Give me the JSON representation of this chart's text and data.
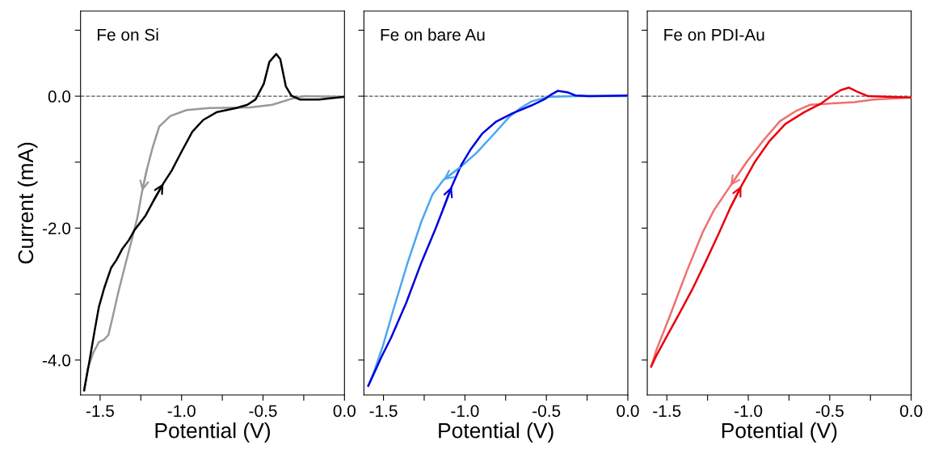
{
  "chart_data": [
    {
      "type": "line",
      "title": "Fe on Si",
      "xlabel": "Potential (V)",
      "ylabel": "Current (mA)",
      "xlim": [
        -1.62,
        0.0
      ],
      "ylim": [
        -4.53,
        1.29
      ],
      "xticks": [
        {
          "value": -1.5,
          "label": "-1.5"
        },
        {
          "value": -1.25,
          "label": null
        },
        {
          "value": -1.0,
          "label": "-1.0"
        },
        {
          "value": -0.75,
          "label": null
        },
        {
          "value": -0.5,
          "label": "-0.5"
        },
        {
          "value": -0.25,
          "label": null
        },
        {
          "value": 0.0,
          "label": "0.0"
        }
      ],
      "yticks": [
        {
          "value": 1.0,
          "label": null
        },
        {
          "value": 0.0,
          "label": "0.0"
        },
        {
          "value": -1.0,
          "label": null
        },
        {
          "value": -2.0,
          "label": "-2.0"
        },
        {
          "value": -3.0,
          "label": null
        },
        {
          "value": -4.0,
          "label": "-4.0"
        }
      ],
      "ref_lines": [
        {
          "axis": "y",
          "value": 0,
          "color": "#555555",
          "line_style": "dashed"
        }
      ],
      "series": [
        {
          "color": "#999999",
          "x": [
            0.0,
            -0.242,
            -0.326,
            -0.444,
            -0.579,
            -0.833,
            -0.968,
            -1.069,
            -1.137,
            -1.179,
            -1.213,
            -1.242,
            -1.272,
            -1.306,
            -1.348,
            -1.39,
            -1.424,
            -1.449,
            -1.475,
            -1.508,
            -1.542,
            -1.576,
            -1.598
          ],
          "values": [
            -0.01,
            0.0,
            -0.04,
            -0.13,
            -0.17,
            -0.18,
            -0.21,
            -0.3,
            -0.46,
            -0.79,
            -1.11,
            -1.44,
            -1.85,
            -2.18,
            -2.58,
            -2.99,
            -3.36,
            -3.62,
            -3.69,
            -3.73,
            -3.89,
            -4.13,
            -4.46
          ]
        },
        {
          "color": "#000000",
          "x": [
            -1.598,
            -1.568,
            -1.534,
            -1.508,
            -1.475,
            -1.432,
            -1.399,
            -1.365,
            -1.323,
            -1.289,
            -1.221,
            -1.171,
            -1.111,
            -1.061,
            -1.002,
            -0.934,
            -0.867,
            -0.782,
            -0.664,
            -0.596,
            -0.546,
            -0.495,
            -0.461,
            -0.419,
            -0.394,
            -0.36,
            -0.326,
            -0.275,
            -0.157,
            0.0
          ],
          "values": [
            -4.46,
            -4.05,
            -3.56,
            -3.2,
            -2.91,
            -2.6,
            -2.48,
            -2.32,
            -2.18,
            -2.03,
            -1.81,
            -1.58,
            -1.32,
            -1.13,
            -0.85,
            -0.54,
            -0.36,
            -0.24,
            -0.18,
            -0.13,
            -0.05,
            0.19,
            0.52,
            0.64,
            0.56,
            0.15,
            0.01,
            -0.05,
            -0.05,
            -0.01
          ]
        }
      ]
    },
    {
      "type": "line",
      "title": "Fe on bare Au",
      "xlabel": "Potential (V)",
      "tick_labels": "x",
      "xlim": [
        -1.62,
        0.0
      ],
      "ylim": [
        -4.53,
        1.29
      ],
      "xticks": [
        {
          "value": -1.5,
          "label": "-1.5"
        },
        {
          "value": -1.25,
          "label": null
        },
        {
          "value": -1.0,
          "label": "-1.0"
        },
        {
          "value": -0.75,
          "label": null
        },
        {
          "value": -0.5,
          "label": "-0.5"
        },
        {
          "value": -0.25,
          "label": null
        },
        {
          "value": 0.0,
          "label": "0.0"
        }
      ],
      "yticks": [
        {
          "value": 1.0,
          "label": null
        },
        {
          "value": 0.0,
          "label": null
        },
        {
          "value": -1.0,
          "label": null
        },
        {
          "value": -2.0,
          "label": null
        },
        {
          "value": -3.0,
          "label": null
        },
        {
          "value": -4.0,
          "label": null
        }
      ],
      "ref_lines": [
        {
          "axis": "y",
          "value": 0,
          "color": "#555555",
          "line_style": "dashed"
        }
      ],
      "series": [
        {
          "color": "#4da6f0",
          "x": [
            0.0,
            -0.321,
            -0.49,
            -0.591,
            -0.659,
            -0.726,
            -0.828,
            -0.929,
            -1.03,
            -1.132,
            -1.199,
            -1.267,
            -1.351,
            -1.436,
            -1.503,
            -1.554,
            -1.593
          ],
          "values": [
            0.0,
            0.0,
            -0.01,
            -0.08,
            -0.18,
            -0.31,
            -0.59,
            -0.86,
            -1.08,
            -1.27,
            -1.49,
            -1.9,
            -2.52,
            -3.21,
            -3.78,
            -4.15,
            -4.39
          ]
        },
        {
          "color": "#0000dd",
          "x": [
            -1.593,
            -1.563,
            -1.512,
            -1.453,
            -1.36,
            -1.267,
            -1.182,
            -1.132,
            -1.081,
            -1.022,
            -0.963,
            -0.895,
            -0.811,
            -0.709,
            -0.591,
            -0.507,
            -0.473,
            -0.431,
            -0.372,
            -0.321,
            -0.236,
            0.0
          ],
          "values": [
            -4.39,
            -4.23,
            -3.95,
            -3.66,
            -3.13,
            -2.52,
            -2.02,
            -1.7,
            -1.37,
            -1.04,
            -0.8,
            -0.57,
            -0.39,
            -0.26,
            -0.14,
            -0.04,
            0.02,
            0.08,
            0.06,
            0.01,
            0.0,
            0.01
          ]
        }
      ]
    },
    {
      "type": "line",
      "title": "Fe on PDI-Au",
      "xlabel": "Potential (V)",
      "tick_labels": "x",
      "xlim": [
        -1.62,
        0.0
      ],
      "ylim": [
        -4.53,
        1.29
      ],
      "xticks": [
        {
          "value": -1.5,
          "label": "-1.5"
        },
        {
          "value": -1.25,
          "label": null
        },
        {
          "value": -1.0,
          "label": "-1.0"
        },
        {
          "value": -0.75,
          "label": null
        },
        {
          "value": -0.5,
          "label": "-0.5"
        },
        {
          "value": -0.25,
          "label": null
        },
        {
          "value": 0.0,
          "label": "0.0"
        }
      ],
      "yticks": [
        {
          "value": 1.0,
          "label": null
        },
        {
          "value": 0.0,
          "label": null
        },
        {
          "value": -1.0,
          "label": null
        },
        {
          "value": -2.0,
          "label": null
        },
        {
          "value": -3.0,
          "label": null
        },
        {
          "value": -4.0,
          "label": null
        }
      ],
      "ref_lines": [
        {
          "axis": "y",
          "value": 0,
          "color": "#555555",
          "line_style": "dashed"
        }
      ],
      "series": [
        {
          "color": "#f07070",
          "x": [
            0.0,
            -0.231,
            -0.35,
            -0.485,
            -0.62,
            -0.704,
            -0.806,
            -0.907,
            -1.008,
            -1.11,
            -1.211,
            -1.279,
            -1.38,
            -1.481,
            -1.566,
            -1.596
          ],
          "values": [
            -0.02,
            -0.05,
            -0.09,
            -0.11,
            -0.13,
            -0.22,
            -0.38,
            -0.67,
            -0.99,
            -1.36,
            -1.73,
            -2.06,
            -2.67,
            -3.33,
            -3.86,
            -4.1
          ]
        },
        {
          "color": "#e8000b",
          "x": [
            -1.596,
            -1.566,
            -1.498,
            -1.431,
            -1.346,
            -1.262,
            -1.177,
            -1.11,
            -1.042,
            -0.958,
            -0.873,
            -0.772,
            -0.654,
            -0.552,
            -0.485,
            -0.434,
            -0.383,
            -0.333,
            -0.265,
            0.0
          ],
          "values": [
            -4.1,
            -3.94,
            -3.63,
            -3.33,
            -2.94,
            -2.51,
            -2.06,
            -1.69,
            -1.36,
            -0.99,
            -0.69,
            -0.42,
            -0.24,
            -0.11,
            0.01,
            0.09,
            0.13,
            0.07,
            0.0,
            -0.02
          ]
        }
      ]
    }
  ]
}
